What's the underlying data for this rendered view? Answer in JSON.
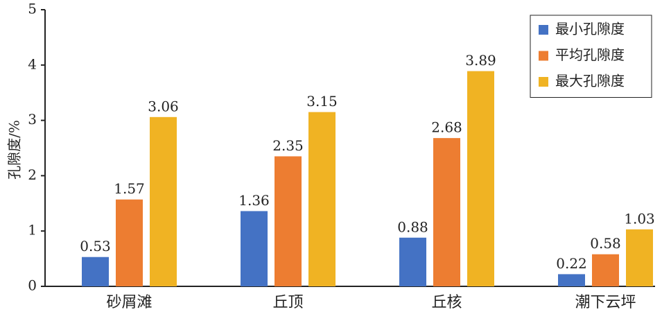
{
  "chart_data": {
    "type": "bar",
    "y_label": "孔隙度/%",
    "categories": [
      "砂屑滩",
      "丘顶",
      "丘核",
      "潮下云坪"
    ],
    "series": [
      {
        "name": "最小孔隙度",
        "color": "#4472c4",
        "values": [
          0.53,
          1.36,
          0.88,
          0.22
        ]
      },
      {
        "name": "平均孔隙度",
        "color": "#ed7d31",
        "values": [
          1.57,
          2.35,
          2.68,
          0.58
        ]
      },
      {
        "name": "最大孔隙度",
        "color": "#f0b323",
        "values": [
          3.06,
          3.15,
          3.89,
          1.03
        ]
      }
    ],
    "ylim": [
      0,
      5
    ],
    "yticks": [
      0,
      1,
      2,
      3,
      4,
      5
    ],
    "grid": false,
    "legend": "upper right"
  }
}
